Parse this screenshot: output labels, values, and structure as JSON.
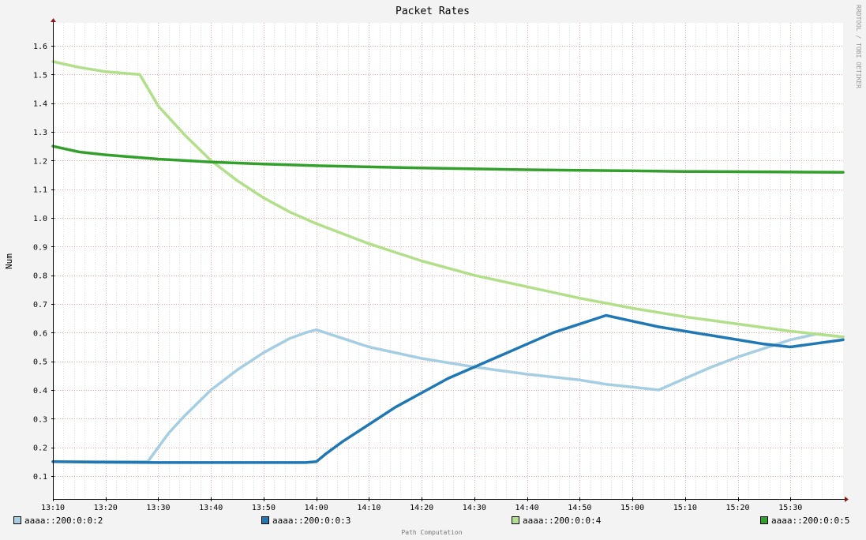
{
  "chart_data": {
    "type": "line",
    "title": "Packet Rates",
    "ylabel": "Num",
    "xlabel": "",
    "watermark": "RRDTOOL / TOBI OETIKER",
    "footer": "Path Computation",
    "ylim": [
      0.02,
      1.68
    ],
    "yticks": [
      0.1,
      0.2,
      0.3,
      0.4,
      0.5,
      0.6,
      0.7,
      0.8,
      0.9,
      1.0,
      1.1,
      1.2,
      1.3,
      1.4,
      1.5,
      1.6
    ],
    "xlim": [
      0,
      150
    ],
    "xticks": [
      0,
      10,
      20,
      30,
      40,
      50,
      60,
      70,
      80,
      90,
      100,
      110,
      120,
      130,
      140
    ],
    "xtick_labels": [
      "13:10",
      "13:20",
      "13:30",
      "13:40",
      "13:50",
      "14:00",
      "14:10",
      "14:20",
      "14:30",
      "14:40",
      "14:50",
      "15:00",
      "15:10",
      "15:20",
      "15:30"
    ],
    "x_unit": "minutes since 13:10",
    "series": [
      {
        "name": "aaaa::200:0:0:2",
        "color": "#a6cee3",
        "x": [
          0,
          16.5,
          18,
          20,
          22,
          25,
          30,
          35,
          40,
          45,
          48,
          50,
          55,
          60,
          70,
          80,
          90,
          100,
          105,
          110,
          115,
          120,
          125,
          130,
          135,
          140,
          145,
          150
        ],
        "y": [
          0.15,
          0.15,
          0.15,
          0.2,
          0.25,
          0.31,
          0.4,
          0.47,
          0.53,
          0.58,
          0.6,
          0.61,
          0.58,
          0.55,
          0.51,
          0.48,
          0.455,
          0.435,
          0.42,
          0.41,
          0.4,
          0.44,
          0.48,
          0.515,
          0.545,
          0.575,
          0.595,
          0.585
        ]
      },
      {
        "name": "aaaa::200:0:0:3",
        "color": "#1f78b4",
        "x": [
          0,
          10,
          20,
          30,
          40,
          46,
          48,
          50,
          52,
          55,
          60,
          65,
          70,
          75,
          80,
          85,
          90,
          95,
          100,
          105,
          110,
          115,
          120,
          125,
          130,
          135,
          140,
          144,
          150
        ],
        "y": [
          0.15,
          0.148,
          0.147,
          0.147,
          0.147,
          0.147,
          0.147,
          0.15,
          0.18,
          0.22,
          0.28,
          0.34,
          0.39,
          0.44,
          0.48,
          0.52,
          0.56,
          0.6,
          0.63,
          0.66,
          0.64,
          0.62,
          0.605,
          0.59,
          0.575,
          0.56,
          0.55,
          0.56,
          0.575
        ]
      },
      {
        "name": "aaaa::200:0:0:4",
        "color": "#b2df8a",
        "x": [
          0,
          5,
          10,
          16.5,
          20,
          25,
          30,
          35,
          40,
          45,
          50,
          55,
          60,
          70,
          80,
          90,
          100,
          110,
          120,
          130,
          140,
          150
        ],
        "y": [
          1.545,
          1.525,
          1.51,
          1.5,
          1.39,
          1.29,
          1.2,
          1.13,
          1.07,
          1.02,
          0.98,
          0.945,
          0.91,
          0.85,
          0.8,
          0.76,
          0.72,
          0.685,
          0.655,
          0.63,
          0.605,
          0.585
        ]
      },
      {
        "name": "aaaa::200:0:0:5",
        "color": "#33a02c",
        "x": [
          0,
          5,
          10,
          20,
          30,
          40,
          50,
          60,
          70,
          80,
          90,
          100,
          110,
          120,
          130,
          140,
          150
        ],
        "y": [
          1.25,
          1.23,
          1.22,
          1.205,
          1.195,
          1.188,
          1.182,
          1.178,
          1.174,
          1.171,
          1.168,
          1.166,
          1.164,
          1.162,
          1.161,
          1.16,
          1.159
        ]
      }
    ]
  }
}
